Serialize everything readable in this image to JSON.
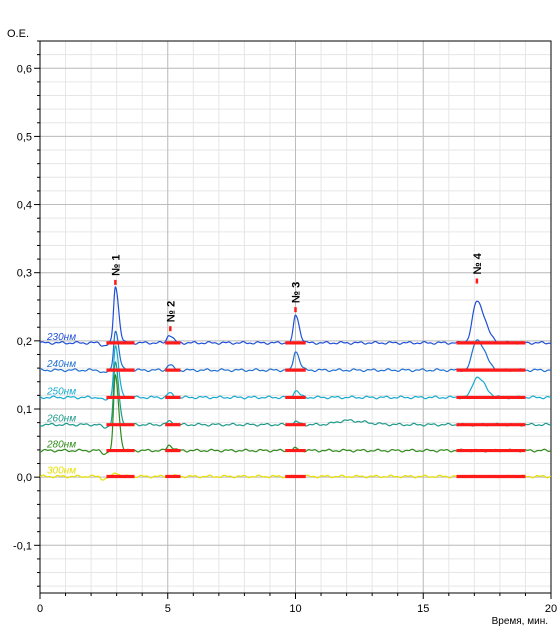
{
  "chart_data": {
    "type": "line",
    "ylabel": "О.Е.",
    "xlabel": "Время, мин.",
    "xlim": [
      0,
      20
    ],
    "ylim": [
      -0.17,
      0.64
    ],
    "x_ticks": [
      0,
      5,
      10,
      15,
      20
    ],
    "x_tick_labels": [
      "0",
      "5",
      "10",
      "15",
      "20"
    ],
    "y_ticks": [
      -0.1,
      0.0,
      0.1,
      0.2,
      0.3,
      0.4,
      0.5,
      0.6
    ],
    "y_tick_labels": [
      "-0,1",
      "0,0",
      "0,1",
      "0,2",
      "0,3",
      "0,4",
      "0,5",
      "0,6"
    ],
    "grid": true,
    "peak_labels": [
      {
        "label": "№ 1",
        "x": 2.95,
        "y": 0.288
      },
      {
        "label": "№ 2",
        "x": 5.1,
        "y": 0.22
      },
      {
        "label": "№ 3",
        "x": 10.0,
        "y": 0.248
      },
      {
        "label": "№ 4",
        "x": 17.1,
        "y": 0.29
      }
    ],
    "integration_color": "#ff1a1a",
    "integration_marks_x": [
      [
        2.6,
        3.7
      ],
      [
        4.9,
        5.5
      ],
      [
        9.6,
        10.4
      ],
      [
        16.3,
        19.0
      ]
    ],
    "series": [
      {
        "name": "230нм",
        "color": "#1f4fd8",
        "baseline": 0.197,
        "peaks": [
          {
            "x": 2.95,
            "h": 0.083,
            "w": 0.07
          },
          {
            "x": 5.05,
            "h": 0.012,
            "w": 0.08
          },
          {
            "x": 10.0,
            "h": 0.041,
            "w": 0.08
          },
          {
            "x": 17.1,
            "h": 0.061,
            "w": 0.17
          }
        ]
      },
      {
        "name": "240нм",
        "color": "#1e6fd0",
        "baseline": 0.157,
        "peaks": [
          {
            "x": 2.95,
            "h": 0.058,
            "w": 0.07
          },
          {
            "x": 5.05,
            "h": 0.008,
            "w": 0.08
          },
          {
            "x": 10.0,
            "h": 0.028,
            "w": 0.08
          },
          {
            "x": 17.1,
            "h": 0.045,
            "w": 0.17
          }
        ]
      },
      {
        "name": "250нм",
        "color": "#16a9d0",
        "baseline": 0.117,
        "peaks": [
          {
            "x": 2.95,
            "h": 0.075,
            "w": 0.07
          },
          {
            "x": 5.05,
            "h": 0.006,
            "w": 0.08
          },
          {
            "x": 10.0,
            "h": 0.01,
            "w": 0.08
          },
          {
            "x": 17.1,
            "h": 0.03,
            "w": 0.17
          }
        ]
      },
      {
        "name": "260нм",
        "color": "#1c9a8a",
        "baseline": 0.077,
        "peaks": [
          {
            "x": 2.95,
            "h": 0.09,
            "w": 0.07
          },
          {
            "x": 5.05,
            "h": 0.005,
            "w": 0.08
          },
          {
            "x": 10.0,
            "h": 0.004,
            "w": 0.08
          },
          {
            "x": 12.0,
            "h": 0.006,
            "w": 0.4
          }
        ]
      },
      {
        "name": "280нм",
        "color": "#2f8a1a",
        "baseline": 0.039,
        "peaks": [
          {
            "x": 2.95,
            "h": 0.11,
            "w": 0.07
          },
          {
            "x": 5.05,
            "h": 0.008,
            "w": 0.08
          },
          {
            "x": 10.0,
            "h": 0.003,
            "w": 0.08
          }
        ]
      },
      {
        "name": "300нм",
        "color": "#e8e000",
        "baseline": 0.001,
        "peaks": [
          {
            "x": 2.95,
            "h": 0.006,
            "w": 0.07
          },
          {
            "x": 5.05,
            "h": 0.002,
            "w": 0.08
          }
        ]
      }
    ]
  }
}
